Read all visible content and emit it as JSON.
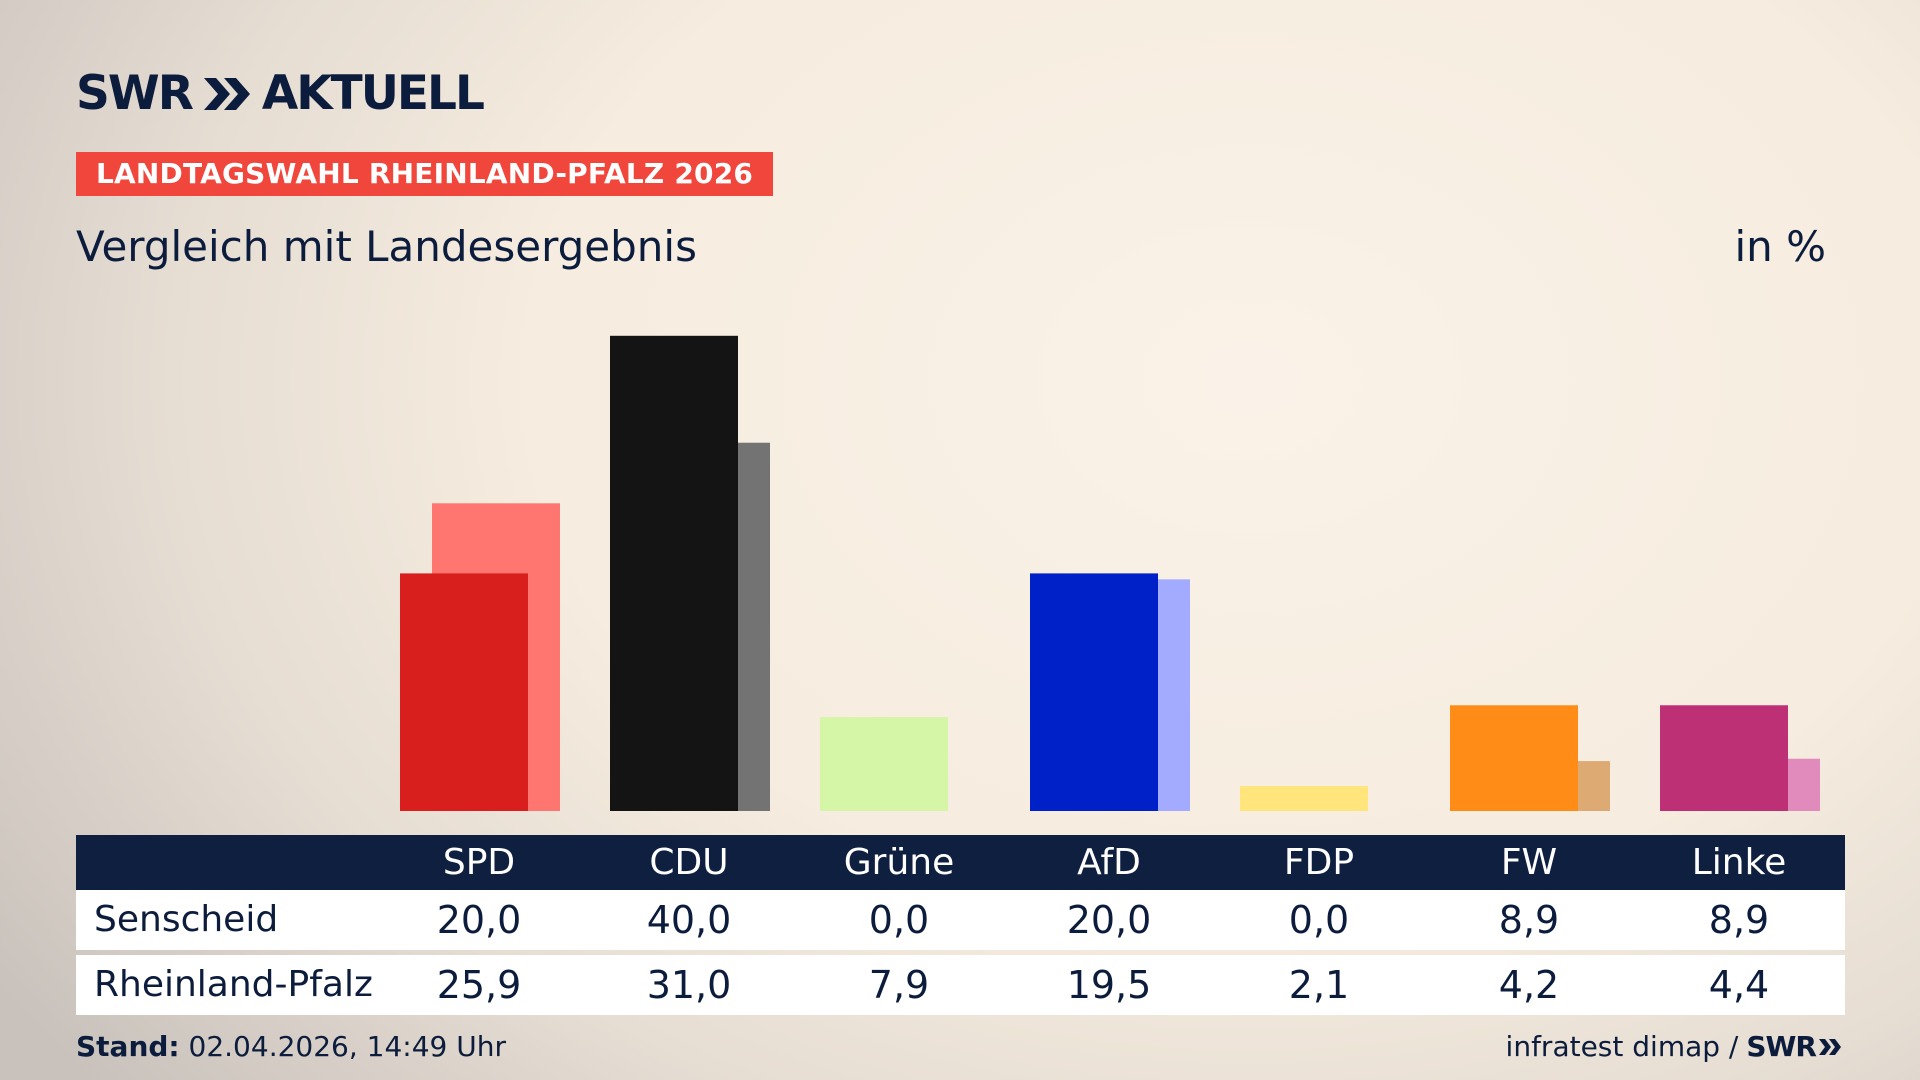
{
  "header": {
    "logo_left": "SWR",
    "logo_right": "AKTUELL",
    "tag": "LANDTAGSWAHL RHEINLAND-PFALZ 2026",
    "subtitle": "Vergleich mit Landesergebnis",
    "unit": "in %"
  },
  "chart_data": {
    "type": "bar",
    "categories": [
      "SPD",
      "CDU",
      "Grüne",
      "AfD",
      "FDP",
      "FW",
      "Linke"
    ],
    "series": [
      {
        "name": "Senscheid",
        "values": [
          20.0,
          40.0,
          0.0,
          20.0,
          0.0,
          8.9,
          8.9
        ]
      },
      {
        "name": "Rheinland-Pfalz",
        "values": [
          25.9,
          31.0,
          7.9,
          19.5,
          2.1,
          4.2,
          4.4
        ]
      }
    ],
    "display_values": [
      [
        "20,0",
        "40,0",
        "0,0",
        "20,0",
        "0,0",
        "8,9",
        "8,9"
      ],
      [
        "25,9",
        "31,0",
        "7,9",
        "19,5",
        "2,1",
        "4,2",
        "4,4"
      ]
    ],
    "colors_primary": [
      "#d81f1e",
      "#141414",
      "#3a8a2a",
      "#0021c8",
      "#f5d300",
      "#ff8c17",
      "#be3075"
    ],
    "colors_secondary": [
      "#ff756f",
      "#737373",
      "#d5f6a6",
      "#a2abff",
      "#ffe57b",
      "#deaa73",
      "#e18bbd"
    ],
    "ylim": [
      0,
      40
    ],
    "legend": "none",
    "grid": false
  },
  "footer": {
    "stand_label": "Stand:",
    "stand_value": "02.04.2026, 14:49 Uhr",
    "source": "infratest dimap /",
    "source_brand": "SWR"
  }
}
